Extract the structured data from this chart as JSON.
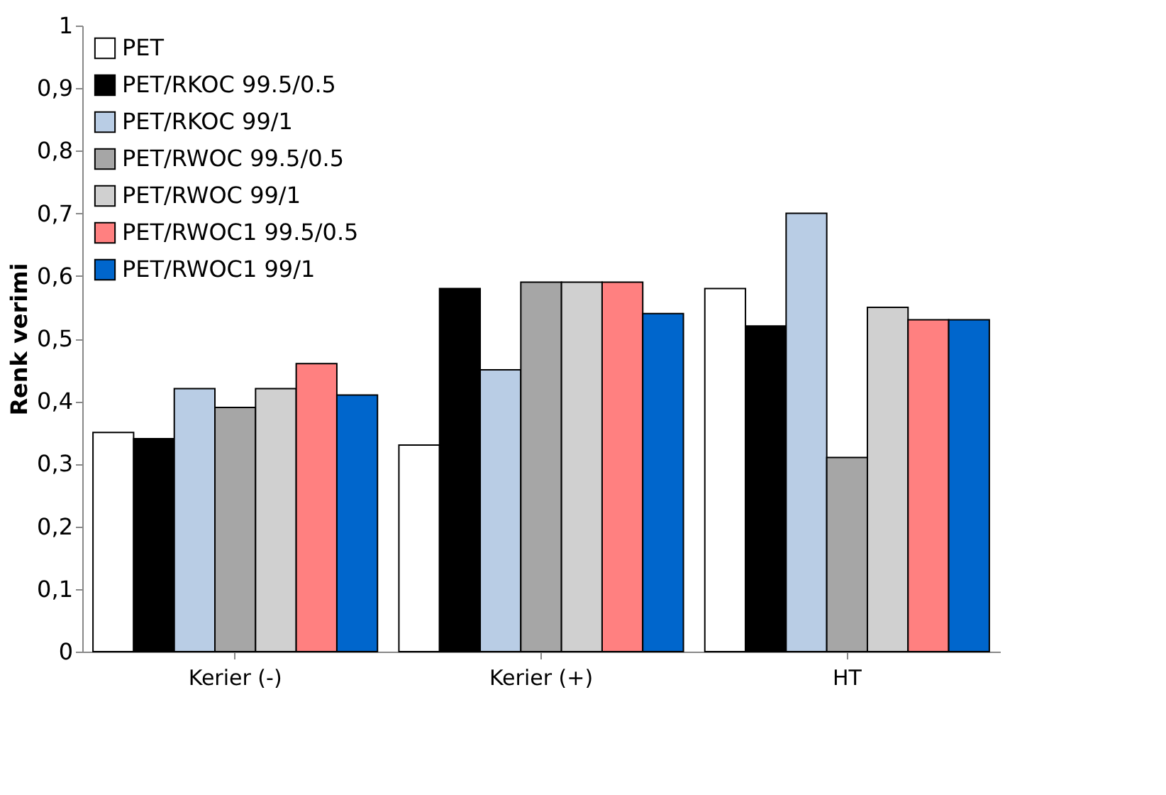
{
  "chart_data": {
    "type": "bar",
    "ylabel": "Renk verimi",
    "categories": [
      "Kerier (-)",
      "Kerier (+)",
      "HT"
    ],
    "series": [
      {
        "name": "PET",
        "color": "#ffffff",
        "values": [
          0.35,
          0.33,
          0.58
        ]
      },
      {
        "name": "PET/RKOC 99.5/0.5",
        "color": "#000000",
        "values": [
          0.34,
          0.58,
          0.52
        ]
      },
      {
        "name": "PET/RKOC 99/1",
        "color": "#b9cde5",
        "values": [
          0.42,
          0.45,
          0.7
        ]
      },
      {
        "name": "PET/RWOC 99.5/0.5",
        "color": "#a6a6a6",
        "values": [
          0.39,
          0.59,
          0.31
        ]
      },
      {
        "name": "PET/RWOC 99/1",
        "color": "#d0d0d0",
        "values": [
          0.42,
          0.59,
          0.55
        ]
      },
      {
        "name": "PET/RWOC1 99.5/0.5",
        "color": "#ff8080",
        "values": [
          0.46,
          0.59,
          0.53
        ]
      },
      {
        "name": "PET/RWOC1 99/1",
        "color": "#0066cc",
        "values": [
          0.41,
          0.54,
          0.53
        ]
      }
    ],
    "ylim": [
      0,
      1
    ],
    "yticks": [
      0,
      {
        "value": 0.1,
        "label": "0,1"
      },
      {
        "value": 0.2,
        "label": "0,2"
      },
      {
        "value": 0.3,
        "label": "0,3"
      },
      {
        "value": 0.4,
        "label": "0,4"
      },
      {
        "value": 0.5,
        "label": "0,5"
      },
      {
        "value": 0.6,
        "label": "0,6"
      },
      {
        "value": 0.7,
        "label": "0,7"
      },
      {
        "value": 0.8,
        "label": "0,8"
      },
      {
        "value": 0.9,
        "label": "0,9"
      },
      1
    ],
    "grid": false,
    "legend": "top left"
  }
}
